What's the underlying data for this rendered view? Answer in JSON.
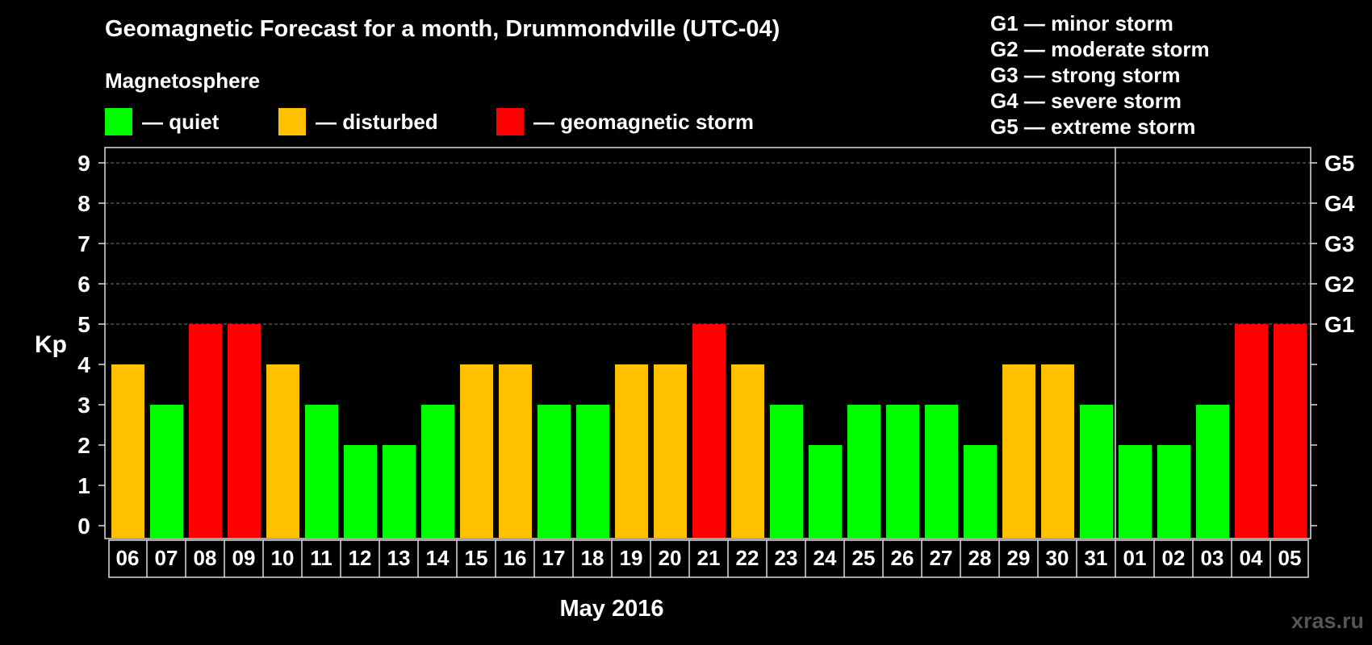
{
  "chart_data": {
    "type": "bar",
    "title": "Geomagnetic Forecast for a month, Drummondville (UTC-04)",
    "subtitle": "Magnetosphere",
    "xlabel": "May 2016",
    "ylabel": "Kp",
    "ylim": [
      0,
      9
    ],
    "yticks": [
      "0",
      "1",
      "2",
      "3",
      "4",
      "5",
      "6",
      "7",
      "8",
      "9"
    ],
    "right_axis_labels": [
      {
        "kp": 5,
        "label": "G1"
      },
      {
        "kp": 6,
        "label": "G2"
      },
      {
        "kp": 7,
        "label": "G3"
      },
      {
        "kp": 8,
        "label": "G4"
      },
      {
        "kp": 9,
        "label": "G5"
      }
    ],
    "categories": [
      "06",
      "07",
      "08",
      "09",
      "10",
      "11",
      "12",
      "13",
      "14",
      "15",
      "16",
      "17",
      "18",
      "19",
      "20",
      "21",
      "22",
      "23",
      "24",
      "25",
      "26",
      "27",
      "28",
      "29",
      "30",
      "31",
      "01",
      "02",
      "03",
      "04",
      "05"
    ],
    "values": [
      4,
      3,
      5,
      5,
      4,
      3,
      2,
      2,
      3,
      4,
      4,
      3,
      3,
      4,
      4,
      5,
      4,
      3,
      2,
      3,
      3,
      3,
      2,
      4,
      4,
      3,
      2,
      2,
      3,
      5,
      5
    ],
    "month_divider_after": "31",
    "legend": [
      {
        "label": "— quiet",
        "color": "#00ff00",
        "range": "0-3"
      },
      {
        "label": "— disturbed",
        "color": "#ffc000",
        "range": "4"
      },
      {
        "label": "— geomagnetic storm",
        "color": "#ff0000",
        "range": "5-9"
      }
    ],
    "storm_levels": [
      "G1 — minor storm",
      "G2 — moderate storm",
      "G3 — strong storm",
      "G4 — severe storm",
      "G5 — extreme storm"
    ]
  },
  "watermark": "xras.ru"
}
